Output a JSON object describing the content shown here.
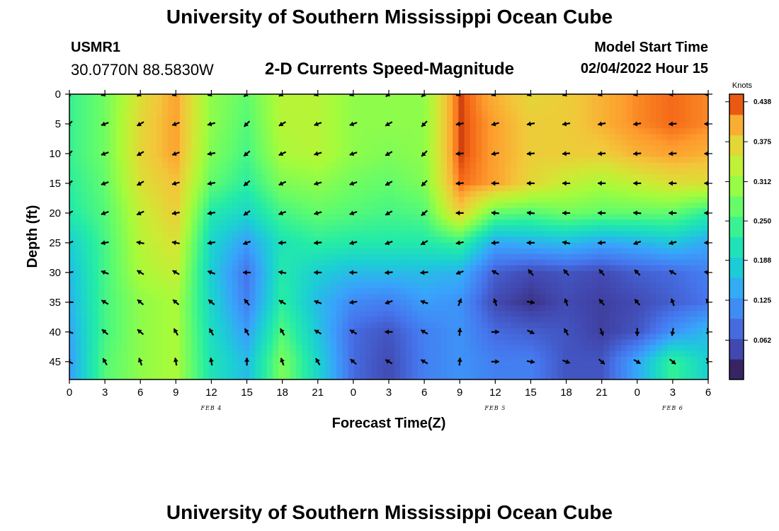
{
  "header": {
    "title": "University of Southern Mississippi Ocean Cube",
    "station_id": "USMR1",
    "coordinates": "30.0770N  88.5830W",
    "subtitle": "2-D Currents Speed-Magnitude",
    "model_start_label": "Model Start Time",
    "model_start_value": "02/04/2022 Hour 15"
  },
  "footer": {
    "title": "University of Southern Mississippi Ocean Cube"
  },
  "chart_data": {
    "type": "heatmap",
    "title": "2-D Currents Speed-Magnitude",
    "xlabel": "Forecast Time(Z)",
    "ylabel": "Depth (ft)",
    "x_hours": [
      0,
      3,
      6,
      9,
      12,
      15,
      18,
      21,
      24,
      27,
      30,
      33,
      36,
      39,
      42,
      45,
      48,
      51,
      54
    ],
    "x_tick_labels": [
      "0",
      "3",
      "6",
      "9",
      "12",
      "15",
      "18",
      "21",
      "0",
      "3",
      "6",
      "9",
      "12",
      "15",
      "18",
      "21",
      "0",
      "3",
      "6"
    ],
    "date_labels": [
      {
        "text": "FEB 4",
        "hour": 12
      },
      {
        "text": "FEB 5",
        "hour": 36
      },
      {
        "text": "FEB 6",
        "hour": 51
      }
    ],
    "y_ticks": [
      0,
      5,
      10,
      15,
      20,
      25,
      30,
      35,
      40,
      45
    ],
    "ylim": [
      0,
      48
    ],
    "depths": [
      0,
      5,
      10,
      15,
      20,
      25,
      30,
      35,
      40,
      45
    ],
    "colorbar": {
      "label": "Knots",
      "min": 0.0,
      "max": 0.45,
      "ticks": [
        "0.438",
        "0.375",
        "0.312",
        "0.250",
        "0.188",
        "0.125",
        "0.062"
      ]
    },
    "speed_knots": [
      [
        0.24,
        0.28,
        0.36,
        0.41,
        0.3,
        0.27,
        0.33,
        0.33,
        0.3,
        0.3,
        0.3,
        0.44,
        0.4,
        0.37,
        0.38,
        0.4,
        0.42,
        0.43,
        0.42
      ],
      [
        0.24,
        0.28,
        0.37,
        0.41,
        0.3,
        0.26,
        0.33,
        0.33,
        0.3,
        0.3,
        0.3,
        0.44,
        0.41,
        0.38,
        0.38,
        0.4,
        0.42,
        0.43,
        0.42
      ],
      [
        0.24,
        0.28,
        0.37,
        0.41,
        0.29,
        0.25,
        0.32,
        0.33,
        0.3,
        0.29,
        0.3,
        0.44,
        0.41,
        0.38,
        0.38,
        0.38,
        0.4,
        0.41,
        0.4
      ],
      [
        0.23,
        0.27,
        0.36,
        0.39,
        0.27,
        0.23,
        0.29,
        0.3,
        0.28,
        0.27,
        0.29,
        0.43,
        0.41,
        0.37,
        0.34,
        0.32,
        0.34,
        0.36,
        0.36
      ],
      [
        0.22,
        0.26,
        0.34,
        0.38,
        0.22,
        0.19,
        0.25,
        0.27,
        0.26,
        0.25,
        0.26,
        0.38,
        0.27,
        0.26,
        0.28,
        0.27,
        0.27,
        0.27,
        0.23
      ],
      [
        0.18,
        0.25,
        0.33,
        0.36,
        0.19,
        0.13,
        0.21,
        0.23,
        0.22,
        0.22,
        0.22,
        0.24,
        0.14,
        0.15,
        0.16,
        0.14,
        0.15,
        0.17,
        0.14
      ],
      [
        0.16,
        0.25,
        0.32,
        0.34,
        0.18,
        0.09,
        0.22,
        0.18,
        0.16,
        0.16,
        0.16,
        0.15,
        0.07,
        0.05,
        0.06,
        0.05,
        0.07,
        0.08,
        0.1
      ],
      [
        0.15,
        0.25,
        0.3,
        0.32,
        0.19,
        0.1,
        0.23,
        0.16,
        0.11,
        0.1,
        0.13,
        0.12,
        0.05,
        0.03,
        0.05,
        0.04,
        0.05,
        0.07,
        0.09
      ],
      [
        0.14,
        0.25,
        0.3,
        0.32,
        0.2,
        0.13,
        0.26,
        0.17,
        0.08,
        0.06,
        0.1,
        0.12,
        0.08,
        0.07,
        0.06,
        0.04,
        0.06,
        0.12,
        0.16
      ],
      [
        0.13,
        0.26,
        0.3,
        0.32,
        0.21,
        0.16,
        0.29,
        0.19,
        0.08,
        0.05,
        0.1,
        0.12,
        0.1,
        0.1,
        0.06,
        0.06,
        0.14,
        0.24,
        0.18
      ]
    ],
    "direction_deg": [
      [
        225,
        250,
        240,
        250,
        250,
        230,
        240,
        250,
        250,
        230,
        225,
        250,
        250,
        250,
        250,
        250,
        255,
        265,
        270
      ],
      [
        225,
        250,
        240,
        250,
        255,
        225,
        240,
        250,
        250,
        240,
        225,
        260,
        255,
        260,
        260,
        260,
        262,
        265,
        270
      ],
      [
        225,
        250,
        240,
        250,
        260,
        230,
        245,
        255,
        250,
        240,
        225,
        265,
        260,
        265,
        265,
        265,
        265,
        265,
        270
      ],
      [
        230,
        250,
        240,
        255,
        260,
        230,
        245,
        255,
        250,
        240,
        225,
        265,
        270,
        270,
        270,
        270,
        270,
        270,
        270
      ],
      [
        240,
        250,
        245,
        260,
        260,
        235,
        250,
        255,
        250,
        240,
        230,
        270,
        275,
        275,
        270,
        270,
        275,
        270,
        270
      ],
      [
        250,
        260,
        280,
        280,
        260,
        250,
        265,
        265,
        255,
        250,
        240,
        260,
        265,
        270,
        280,
        265,
        250,
        255,
        270
      ],
      [
        260,
        290,
        300,
        300,
        290,
        270,
        280,
        270,
        270,
        265,
        265,
        250,
        300,
        320,
        320,
        320,
        315,
        300,
        280
      ],
      [
        270,
        300,
        310,
        310,
        310,
        320,
        300,
        290,
        260,
        250,
        290,
        20,
        340,
        100,
        340,
        320,
        320,
        340,
        330
      ],
      [
        290,
        310,
        310,
        330,
        330,
        330,
        330,
        300,
        300,
        270,
        300,
        5,
        90,
        115,
        330,
        160,
        180,
        190,
        170
      ],
      [
        300,
        330,
        340,
        350,
        350,
        0,
        340,
        330,
        310,
        300,
        300,
        5,
        90,
        100,
        110,
        130,
        120,
        130,
        155
      ]
    ]
  }
}
